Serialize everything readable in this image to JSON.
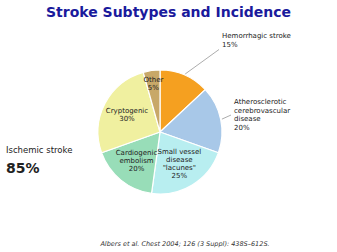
{
  "chart_data": {
    "type": "pie",
    "title": "Stroke Subtypes and Incidence",
    "categories": [
      "Hemorrhagic stroke\n15%",
      "Atherosclerotic\ncerebrovascular\ndisease\n20%",
      "Small vessel\ndisease\n\"lacunes\"\n25%",
      "Cardiogenic\nembolism\n20%",
      "Cryptogenic\n30%",
      "Other\n5%"
    ],
    "values": [
      15,
      20,
      25,
      20,
      30,
      5
    ],
    "colors": [
      "#f5a020",
      "#a8c8e8",
      "#b8eef0",
      "#98ddb8",
      "#f0f0a0",
      "#c8a868"
    ],
    "annotations": [
      "Ischemic stroke",
      "85%",
      "Albers et al. Chest 2004; 126 (3 Suppl): 438S–612S."
    ]
  }
}
